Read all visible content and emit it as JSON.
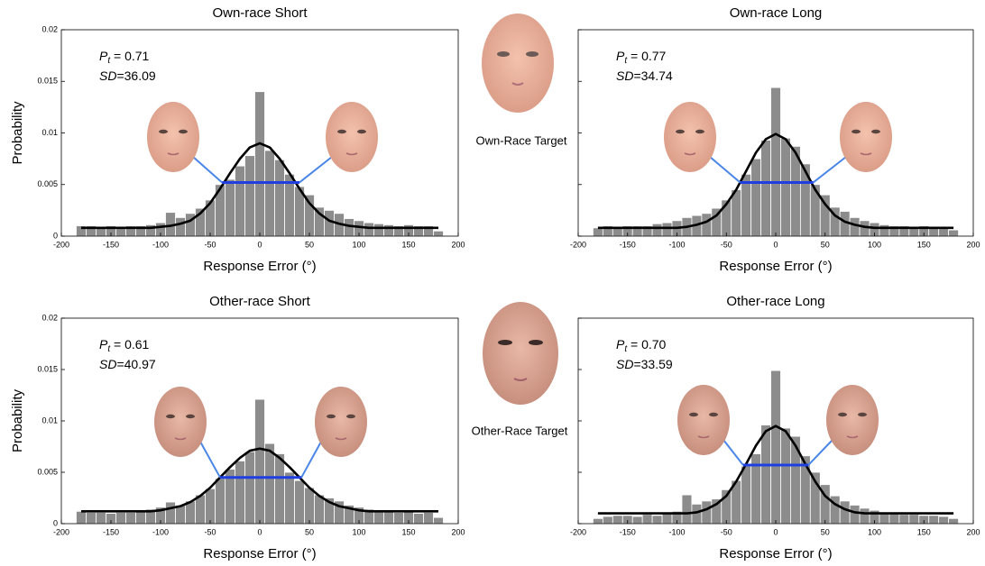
{
  "faces": {
    "own_target": "Own-Race Target",
    "other_target": "Other-Race Target"
  },
  "chart_data": [
    {
      "type": "histogram",
      "title": "Own-race Short",
      "xlabel": "Response Error (°)",
      "ylabel": "Probability",
      "bins": [
        -185,
        -175,
        -165,
        -155,
        -145,
        -135,
        -125,
        -115,
        -105,
        -95,
        -85,
        -75,
        -65,
        -55,
        -45,
        -35,
        -25,
        -15,
        -5,
        5,
        15,
        25,
        35,
        45,
        55,
        65,
        75,
        85,
        95,
        105,
        115,
        125,
        135,
        145,
        155,
        165,
        175,
        185
      ],
      "values": [
        0.001,
        0.001,
        0.0009,
        0.001,
        0.0009,
        0.001,
        0.001,
        0.0011,
        0.0013,
        0.0023,
        0.0018,
        0.0022,
        0.0027,
        0.0035,
        0.005,
        0.0055,
        0.0068,
        0.0078,
        0.014,
        0.0083,
        0.0074,
        0.006,
        0.0048,
        0.004,
        0.0028,
        0.0025,
        0.0022,
        0.0017,
        0.0015,
        0.0013,
        0.0012,
        0.0011,
        0.001,
        0.0011,
        0.001,
        0.001,
        0.0005
      ],
      "color": "#8c8c8c",
      "curve": {
        "color": "#000000",
        "x": [
          -180,
          -170,
          -160,
          -150,
          -140,
          -130,
          -120,
          -110,
          -100,
          -90,
          -80,
          -70,
          -60,
          -50,
          -40,
          -30,
          -20,
          -10,
          0,
          10,
          20,
          30,
          40,
          50,
          60,
          70,
          80,
          90,
          100,
          110,
          120,
          130,
          140,
          150,
          160,
          170,
          180
        ],
        "values": [
          0.0008,
          0.0008,
          0.0008,
          0.0008,
          0.0008,
          0.0008,
          0.0008,
          0.0008,
          0.0009,
          0.001,
          0.0012,
          0.0015,
          0.0022,
          0.0032,
          0.0046,
          0.0061,
          0.0075,
          0.0086,
          0.009,
          0.0086,
          0.0075,
          0.0061,
          0.0046,
          0.0032,
          0.0022,
          0.0015,
          0.0012,
          0.001,
          0.0009,
          0.0008,
          0.0008,
          0.0008,
          0.0008,
          0.0008,
          0.0008,
          0.0008,
          0.0008
        ]
      },
      "width_line": {
        "color": "#1f3fe0",
        "x": [
          -38,
          40
        ],
        "y": 0.0052
      },
      "annotation": {
        "pt_symbol": "P",
        "pt_subscript": "t",
        "pt_text": " = 0.71",
        "sd_symbol": "SD",
        "sd_text": "=36.09"
      },
      "xlim": [
        -200,
        200
      ],
      "ylim": [
        0,
        0.02
      ],
      "xticks": [
        -200,
        -150,
        -100,
        -50,
        0,
        50,
        100,
        150,
        200
      ],
      "yticks": [
        0,
        0.005,
        0.01,
        0.015,
        0.02
      ],
      "ytick_labels": true
    },
    {
      "type": "histogram",
      "title": "Own-race Long",
      "xlabel": "Response Error (°)",
      "bins": [
        -185,
        -175,
        -165,
        -155,
        -145,
        -135,
        -125,
        -115,
        -105,
        -95,
        -85,
        -75,
        -65,
        -55,
        -45,
        -35,
        -25,
        -15,
        -5,
        5,
        15,
        25,
        35,
        45,
        55,
        65,
        75,
        85,
        95,
        105,
        115,
        125,
        135,
        145,
        155,
        165,
        175,
        185
      ],
      "values": [
        0.0008,
        0.001,
        0.0009,
        0.001,
        0.001,
        0.001,
        0.0012,
        0.0013,
        0.0015,
        0.0018,
        0.002,
        0.0022,
        0.0027,
        0.0035,
        0.0045,
        0.006,
        0.0075,
        0.0093,
        0.0144,
        0.0095,
        0.0087,
        0.007,
        0.005,
        0.004,
        0.0028,
        0.0024,
        0.0018,
        0.0015,
        0.0013,
        0.0011,
        0.001,
        0.001,
        0.0009,
        0.001,
        0.0009,
        0.0008,
        0.0006
      ],
      "color": "#8c8c8c",
      "curve": {
        "color": "#000000",
        "x": [
          -180,
          -170,
          -160,
          -150,
          -140,
          -130,
          -120,
          -110,
          -100,
          -90,
          -80,
          -70,
          -60,
          -50,
          -40,
          -30,
          -20,
          -10,
          0,
          10,
          20,
          30,
          40,
          50,
          60,
          70,
          80,
          90,
          100,
          110,
          120,
          130,
          140,
          150,
          160,
          170,
          180
        ],
        "values": [
          0.0008,
          0.0008,
          0.0008,
          0.0008,
          0.0008,
          0.0008,
          0.0008,
          0.0008,
          0.0008,
          0.0009,
          0.0011,
          0.0014,
          0.002,
          0.0031,
          0.0045,
          0.0063,
          0.0081,
          0.0094,
          0.0099,
          0.0094,
          0.0081,
          0.0063,
          0.0045,
          0.0031,
          0.002,
          0.0014,
          0.0011,
          0.0009,
          0.0008,
          0.0008,
          0.0008,
          0.0008,
          0.0008,
          0.0008,
          0.0008,
          0.0008,
          0.0008
        ]
      },
      "width_line": {
        "color": "#1f3fe0",
        "x": [
          -36,
          38
        ],
        "y": 0.0052
      },
      "annotation": {
        "pt_symbol": "P",
        "pt_subscript": "t",
        "pt_text": " = 0.77",
        "sd_symbol": "SD",
        "sd_text": "=34.74"
      },
      "xlim": [
        -200,
        200
      ],
      "ylim": [
        0,
        0.02
      ],
      "xticks": [
        -200,
        -150,
        -100,
        -50,
        0,
        50,
        100,
        150,
        200
      ],
      "yticks": [
        0,
        0.005,
        0.01,
        0.015,
        0.02
      ],
      "ytick_labels": false
    },
    {
      "type": "histogram",
      "title": "Other-race Short",
      "xlabel": "Response Error (°)",
      "ylabel": "Probability",
      "bins": [
        -185,
        -175,
        -165,
        -155,
        -145,
        -135,
        -125,
        -115,
        -105,
        -95,
        -85,
        -75,
        -65,
        -55,
        -45,
        -35,
        -25,
        -15,
        -5,
        5,
        15,
        25,
        35,
        45,
        55,
        65,
        75,
        85,
        95,
        105,
        115,
        125,
        135,
        145,
        155,
        165,
        175,
        185
      ],
      "values": [
        0.0012,
        0.0011,
        0.0011,
        0.001,
        0.0011,
        0.0011,
        0.0012,
        0.0014,
        0.0016,
        0.0021,
        0.0018,
        0.0022,
        0.0028,
        0.0034,
        0.0044,
        0.0053,
        0.0061,
        0.007,
        0.0121,
        0.0078,
        0.0068,
        0.005,
        0.0042,
        0.0035,
        0.0028,
        0.0025,
        0.0022,
        0.0018,
        0.0016,
        0.0014,
        0.0013,
        0.0012,
        0.0011,
        0.0012,
        0.001,
        0.0011,
        0.0006
      ],
      "color": "#8c8c8c",
      "curve": {
        "color": "#000000",
        "x": [
          -180,
          -170,
          -160,
          -150,
          -140,
          -130,
          -120,
          -110,
          -100,
          -90,
          -80,
          -70,
          -60,
          -50,
          -40,
          -30,
          -20,
          -10,
          0,
          10,
          20,
          30,
          40,
          50,
          60,
          70,
          80,
          90,
          100,
          110,
          120,
          130,
          140,
          150,
          160,
          170,
          180
        ],
        "values": [
          0.0012,
          0.0012,
          0.0012,
          0.0012,
          0.0012,
          0.0012,
          0.0012,
          0.0012,
          0.0013,
          0.0015,
          0.0017,
          0.0021,
          0.0027,
          0.0035,
          0.0045,
          0.0055,
          0.0064,
          0.0071,
          0.0073,
          0.0071,
          0.0064,
          0.0055,
          0.0045,
          0.0035,
          0.0027,
          0.0021,
          0.0017,
          0.0015,
          0.0013,
          0.0012,
          0.0012,
          0.0012,
          0.0012,
          0.0012,
          0.0012,
          0.0012,
          0.0012
        ]
      },
      "width_line": {
        "color": "#1f3fe0",
        "x": [
          -40,
          42
        ],
        "y": 0.0045
      },
      "annotation": {
        "pt_symbol": "P",
        "pt_subscript": "t",
        "pt_text": " = 0.61",
        "sd_symbol": "SD",
        "sd_text": "=40.97"
      },
      "xlim": [
        -200,
        200
      ],
      "ylim": [
        0,
        0.02
      ],
      "xticks": [
        -200,
        -150,
        -100,
        -50,
        0,
        50,
        100,
        150,
        200
      ],
      "yticks": [
        0,
        0.005,
        0.01,
        0.015,
        0.02
      ],
      "ytick_labels": true
    },
    {
      "type": "histogram",
      "title": "Other-race Long",
      "xlabel": "Response Error (°)",
      "bins": [
        -185,
        -175,
        -165,
        -155,
        -145,
        -135,
        -125,
        -115,
        -105,
        -95,
        -85,
        -75,
        -65,
        -55,
        -45,
        -35,
        -25,
        -15,
        -5,
        5,
        15,
        25,
        35,
        45,
        55,
        65,
        75,
        85,
        95,
        105,
        115,
        125,
        135,
        145,
        155,
        165,
        175,
        185
      ],
      "values": [
        0.0005,
        0.0007,
        0.0008,
        0.0008,
        0.0007,
        0.0009,
        0.0008,
        0.0011,
        0.0012,
        0.0028,
        0.0019,
        0.0022,
        0.0024,
        0.0033,
        0.0042,
        0.0056,
        0.0068,
        0.0096,
        0.0149,
        0.0093,
        0.0085,
        0.0066,
        0.005,
        0.0038,
        0.0027,
        0.0022,
        0.0018,
        0.0015,
        0.0013,
        0.0011,
        0.001,
        0.0009,
        0.0009,
        0.0008,
        0.0008,
        0.0007,
        0.0005
      ],
      "color": "#8c8c8c",
      "curve": {
        "color": "#000000",
        "x": [
          -180,
          -170,
          -160,
          -150,
          -140,
          -130,
          -120,
          -110,
          -100,
          -90,
          -80,
          -70,
          -60,
          -50,
          -40,
          -30,
          -20,
          -10,
          0,
          10,
          20,
          30,
          40,
          50,
          60,
          70,
          80,
          90,
          100,
          110,
          120,
          130,
          140,
          150,
          160,
          170,
          180
        ],
        "values": [
          0.001,
          0.001,
          0.001,
          0.001,
          0.001,
          0.001,
          0.001,
          0.001,
          0.001,
          0.001,
          0.0011,
          0.0014,
          0.0019,
          0.0027,
          0.0041,
          0.0058,
          0.0076,
          0.009,
          0.0095,
          0.009,
          0.0076,
          0.0058,
          0.0041,
          0.0027,
          0.0019,
          0.0014,
          0.0011,
          0.001,
          0.001,
          0.001,
          0.001,
          0.001,
          0.001,
          0.001,
          0.001,
          0.001,
          0.001
        ]
      },
      "width_line": {
        "color": "#1f3fe0",
        "x": [
          -33,
          33
        ],
        "y": 0.0057
      },
      "annotation": {
        "pt_symbol": "P",
        "pt_subscript": "t",
        "pt_text": " = 0.70",
        "sd_symbol": "SD",
        "sd_text": "=33.59"
      },
      "xlim": [
        -200,
        200
      ],
      "ylim": [
        0,
        0.02
      ],
      "xticks": [
        -200,
        -150,
        -100,
        -50,
        0,
        50,
        100,
        150,
        200
      ],
      "yticks": [
        0,
        0.005,
        0.01,
        0.015,
        0.02
      ],
      "ytick_labels": false
    }
  ]
}
